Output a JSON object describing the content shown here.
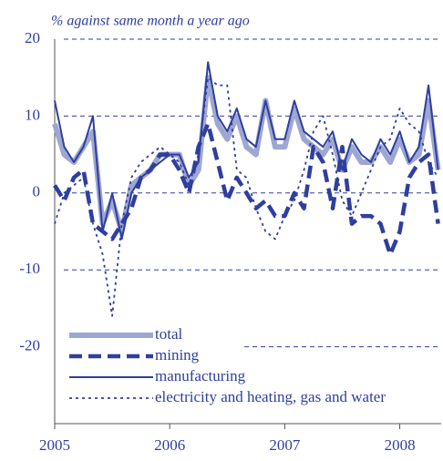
{
  "chart_data": {
    "type": "line",
    "subtitle": "% against same month a year ago",
    "x": [
      2005,
      2005.083,
      2005.167,
      2005.25,
      2005.333,
      2005.417,
      2005.5,
      2005.583,
      2005.667,
      2005.75,
      2005.833,
      2005.917,
      2006,
      2006.083,
      2006.167,
      2006.25,
      2006.333,
      2006.417,
      2006.5,
      2006.583,
      2006.667,
      2006.75,
      2006.833,
      2006.917,
      2007,
      2007.083,
      2007.167,
      2007.25,
      2007.333,
      2007.417,
      2007.5,
      2007.583,
      2007.667,
      2007.75,
      2007.833,
      2007.917,
      2008,
      2008.083,
      2008.167,
      2008.25,
      2008.333
    ],
    "series": [
      {
        "name": "total",
        "color": "#9ea6d2",
        "values": [
          9,
          5,
          4,
          6,
          8,
          -4,
          -1,
          -5,
          1,
          2,
          3,
          5,
          5,
          5,
          1,
          3,
          15,
          9,
          7,
          10,
          6,
          5,
          12,
          6,
          6,
          11,
          7,
          6,
          5,
          7,
          3,
          6,
          4,
          4,
          6,
          4,
          7,
          4,
          5,
          12,
          3
        ]
      },
      {
        "name": "mining",
        "color": "#2e3f9e",
        "values": [
          1,
          -1,
          2,
          3,
          -4,
          -5,
          -6,
          -4,
          -2,
          2,
          3,
          5,
          5,
          3,
          0,
          6,
          9,
          4,
          -1,
          2,
          0,
          -2,
          -1,
          -3,
          -3,
          0,
          -2,
          6,
          4,
          -2,
          6,
          -4,
          -3,
          -3,
          -4,
          -8,
          -5,
          2,
          4,
          5,
          -4
        ]
      },
      {
        "name": "manufacturing",
        "color": "#2e3f9e",
        "values": [
          12,
          6,
          4,
          6,
          10,
          -5,
          0,
          -6,
          0,
          2,
          3,
          4,
          5,
          5,
          2,
          4,
          17,
          10,
          8,
          11,
          7,
          6,
          12,
          7,
          7,
          12,
          8,
          7,
          6,
          8,
          3,
          7,
          5,
          4,
          7,
          5,
          8,
          4,
          6,
          14,
          3
        ]
      },
      {
        "name": "electricity and heating, gas and water",
        "color": "#2e3f9e",
        "values": [
          -4,
          0,
          1,
          2,
          -4,
          -8,
          -16,
          -4,
          2,
          4,
          5,
          6,
          5,
          4,
          1,
          5,
          15,
          14,
          14,
          3,
          2,
          -2,
          -5,
          -6,
          -3,
          -1,
          3,
          8,
          10,
          5,
          -1,
          -3,
          0,
          3,
          6,
          7,
          11,
          9,
          8,
          4,
          2
        ]
      }
    ],
    "xlim": [
      2005,
      2008.36
    ],
    "xticks": [
      2005,
      2006,
      2007,
      2008
    ],
    "ylim": [
      -30,
      20
    ],
    "yticks": [
      -20,
      -10,
      0,
      10,
      20
    ],
    "grid": true,
    "legend": "lower left"
  }
}
